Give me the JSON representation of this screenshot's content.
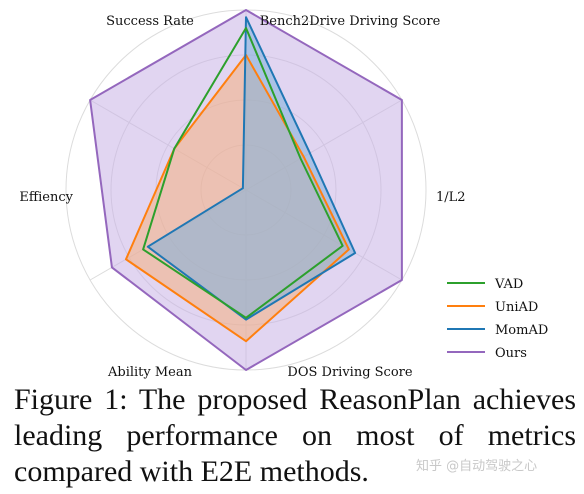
{
  "chart_data": {
    "type": "radar",
    "axes": [
      "Success Rate",
      "Bench2Drive Driving Score",
      "1/L2",
      "DOS Driving Score",
      "Ability Mean",
      "Effiency"
    ],
    "rmax": 1.0,
    "grid": true,
    "legend_position": "bottom-right",
    "series": [
      {
        "name": "VAD",
        "color": "#2ca02c",
        "fill": false,
        "values": [
          0.35,
          0.62,
          0.71,
          0.66,
          0.46,
          0.9
        ]
      },
      {
        "name": "UniAD",
        "color": "#ff7f0e",
        "fill": true,
        "fill_color": "#f5b07f",
        "values": [
          0.37,
          0.66,
          0.84,
          0.77,
          0.46,
          0.75
        ]
      },
      {
        "name": "MomAD",
        "color": "#1f77b4",
        "fill": true,
        "fill_color": "#7fb0db",
        "values": [
          0.41,
          0.7,
          0.72,
          0.63,
          0.02,
          0.96
        ]
      },
      {
        "name": "Ours",
        "color": "#9467bd",
        "fill": true,
        "fill_color": "#c9b3e6",
        "values": [
          1.0,
          1.0,
          1.0,
          0.86,
          1.0,
          1.0
        ]
      }
    ]
  },
  "caption": "Figure 1:  The proposed ReasonPlan achieves leading performance on most of metrics compared with E2E methods.",
  "watermark": "知乎 @自动驾驶之心"
}
